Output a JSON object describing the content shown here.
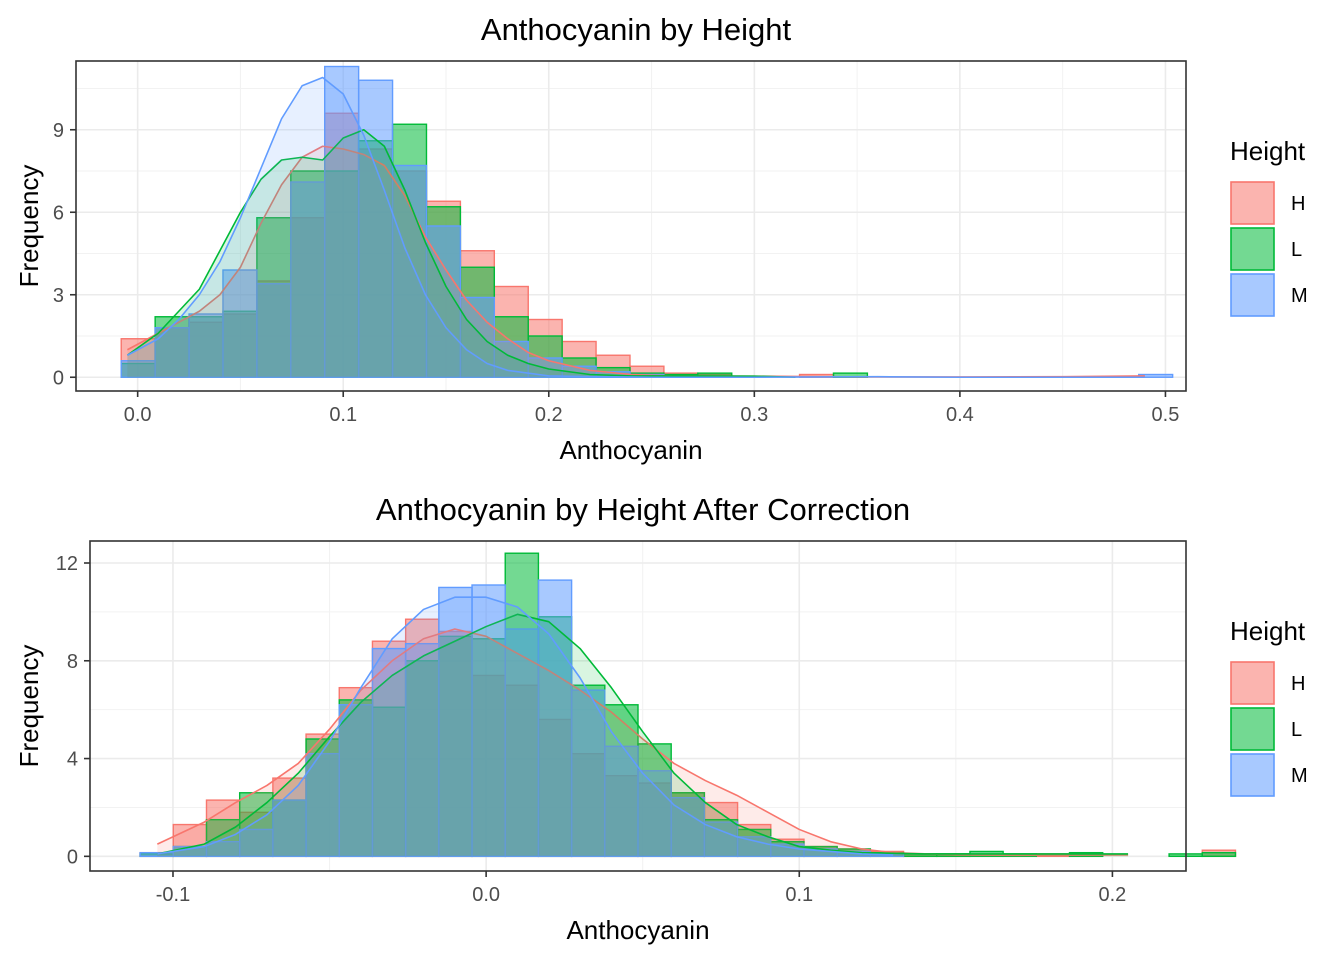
{
  "colors": {
    "H": "#F8766D",
    "L": "#00BA38",
    "M": "#619CFF"
  },
  "chart_data": [
    {
      "type": "histogram",
      "title": "Anthocyanin by Height",
      "xlabel": "Anthocyanin",
      "ylabel": "Frequency",
      "xlim": [
        -0.03,
        0.51
      ],
      "ylim": [
        -0.5,
        11.5
      ],
      "x_ticks": [
        0.0,
        0.1,
        0.2,
        0.3,
        0.4,
        0.5
      ],
      "x_tick_labels": [
        "0.0",
        "0.1",
        "0.2",
        "0.3",
        "0.4",
        "0.5"
      ],
      "y_ticks": [
        0,
        3,
        6,
        9
      ],
      "y_tick_labels": [
        "0",
        "3",
        "6",
        "9"
      ],
      "legend": {
        "title": "Height",
        "position": "right",
        "entries": [
          "H",
          "L",
          "M"
        ]
      },
      "bin_start": -0.008,
      "bin_width": 0.0165,
      "series": [
        {
          "name": "H",
          "values": [
            1.4,
            1.8,
            2.0,
            2.3,
            3.5,
            5.8,
            9.6,
            8.3,
            7.5,
            6.4,
            4.6,
            3.3,
            2.1,
            1.3,
            0.8,
            0.4,
            0.15,
            0.1,
            0,
            0,
            0.1,
            0,
            0,
            0,
            0,
            0,
            0,
            0,
            0,
            0,
            0,
            0,
            0,
            0,
            0,
            0,
            0,
            0,
            0,
            0.15
          ]
        },
        {
          "name": "L",
          "values": [
            0.5,
            2.2,
            2.2,
            2.4,
            5.8,
            7.5,
            7.5,
            8.6,
            9.2,
            6.2,
            4.0,
            2.2,
            1.5,
            0.7,
            0.35,
            0.15,
            0.1,
            0.15,
            0,
            0,
            0,
            0.15,
            0,
            0,
            0,
            0,
            0,
            0,
            0,
            0,
            0,
            0,
            0,
            0,
            0,
            0,
            0,
            0,
            0,
            0
          ]
        },
        {
          "name": "M",
          "values": [
            0.6,
            1.8,
            2.3,
            3.9,
            3.4,
            7.1,
            11.3,
            10.8,
            7.7,
            5.5,
            2.9,
            1.3,
            0.7,
            0.4,
            0.2,
            0.1,
            0,
            0,
            0,
            0,
            0,
            0,
            0,
            0,
            0,
            0,
            0,
            0,
            0,
            0,
            0.1,
            0,
            0,
            0,
            0,
            0,
            0,
            0,
            0,
            0
          ]
        }
      ],
      "density": [
        {
          "name": "H",
          "x": [
            -0.005,
            0.01,
            0.02,
            0.03,
            0.04,
            0.05,
            0.06,
            0.07,
            0.08,
            0.09,
            0.1,
            0.11,
            0.12,
            0.13,
            0.14,
            0.15,
            0.16,
            0.17,
            0.18,
            0.19,
            0.2,
            0.22,
            0.24,
            0.26,
            0.3,
            0.35,
            0.4,
            0.45,
            0.49
          ],
          "y": [
            1.0,
            1.6,
            2.0,
            2.4,
            3.0,
            4.0,
            5.6,
            7.0,
            8.0,
            8.4,
            8.3,
            8.1,
            7.7,
            6.6,
            5.1,
            3.9,
            2.8,
            2.0,
            1.4,
            0.9,
            0.6,
            0.25,
            0.1,
            0.05,
            0.04,
            0.01,
            0.01,
            0.02,
            0.05
          ]
        },
        {
          "name": "L",
          "x": [
            -0.005,
            0.01,
            0.02,
            0.03,
            0.04,
            0.05,
            0.06,
            0.07,
            0.08,
            0.09,
            0.1,
            0.11,
            0.12,
            0.13,
            0.14,
            0.15,
            0.16,
            0.17,
            0.18,
            0.19,
            0.2,
            0.22,
            0.24,
            0.26,
            0.3,
            0.32
          ],
          "y": [
            0.8,
            1.6,
            2.4,
            3.2,
            4.6,
            6.0,
            7.2,
            7.9,
            8.0,
            7.9,
            8.7,
            9.0,
            8.4,
            6.8,
            4.9,
            3.3,
            2.1,
            1.3,
            0.8,
            0.5,
            0.3,
            0.1,
            0.05,
            0.05,
            0.04,
            0.0
          ]
        },
        {
          "name": "M",
          "x": [
            -0.005,
            0.01,
            0.02,
            0.03,
            0.04,
            0.05,
            0.06,
            0.07,
            0.08,
            0.09,
            0.1,
            0.11,
            0.12,
            0.13,
            0.14,
            0.15,
            0.16,
            0.17,
            0.18,
            0.2,
            0.22,
            0.25,
            0.3,
            0.36,
            0.4,
            0.45,
            0.49
          ],
          "y": [
            0.8,
            1.4,
            2.1,
            3.0,
            4.2,
            5.8,
            7.6,
            9.4,
            10.6,
            10.9,
            10.3,
            8.8,
            6.8,
            4.7,
            3.0,
            1.8,
            1.0,
            0.5,
            0.25,
            0.05,
            0.02,
            0.0,
            0.0,
            0.02,
            0.0,
            0.0,
            0.0
          ]
        }
      ]
    },
    {
      "type": "histogram",
      "title": "Anthocyanin by Height After Correction",
      "xlabel": "Anthocyanin",
      "ylabel": "Frequency",
      "xlim": [
        -0.1265,
        0.2235
      ],
      "ylim": [
        -0.6,
        12.9
      ],
      "x_ticks": [
        -0.1,
        0.0,
        0.1,
        0.2
      ],
      "x_tick_labels": [
        "-0.1",
        "0.0",
        "0.1",
        "0.2"
      ],
      "y_ticks": [
        0,
        4,
        8,
        12
      ],
      "y_tick_labels": [
        "0",
        "4",
        "8",
        "12"
      ],
      "legend": {
        "title": "Height",
        "position": "right",
        "entries": [
          "H",
          "L",
          "M"
        ]
      },
      "bin_start": -0.1105,
      "bin_width": 0.0106,
      "series": [
        {
          "name": "H",
          "values": [
            0.15,
            1.3,
            2.3,
            1.8,
            3.2,
            5.0,
            6.9,
            8.8,
            9.7,
            9.2,
            7.4,
            7.0,
            5.6,
            4.2,
            3.3,
            3.0,
            2.6,
            2.2,
            1.3,
            0.7,
            0.4,
            0.3,
            0.2,
            0.1,
            0.1,
            0,
            0,
            0.1,
            0,
            0,
            0,
            0,
            0.25
          ]
        },
        {
          "name": "L",
          "values": [
            0.1,
            0.4,
            1.5,
            2.6,
            2.3,
            4.8,
            6.4,
            6.1,
            8.0,
            9.0,
            8.9,
            12.4,
            9.8,
            7.0,
            6.2,
            4.6,
            2.6,
            1.5,
            1.1,
            0.6,
            0.4,
            0.3,
            0.15,
            0.1,
            0.1,
            0.2,
            0.1,
            0,
            0.15,
            0,
            0,
            0.1,
            0.15
          ]
        },
        {
          "name": "M",
          "values": [
            0.15,
            0.4,
            0.6,
            1.1,
            2.3,
            4.2,
            6.2,
            8.5,
            8.7,
            11.0,
            11.1,
            9.3,
            11.3,
            6.8,
            4.5,
            3.5,
            2.4,
            1.4,
            0.8,
            0.5,
            0.3,
            0.2,
            0.1,
            0,
            0,
            0,
            0,
            0,
            0,
            0,
            0,
            0,
            0
          ]
        }
      ],
      "density": [
        {
          "name": "H",
          "x": [
            -0.105,
            -0.09,
            -0.08,
            -0.07,
            -0.06,
            -0.05,
            -0.04,
            -0.03,
            -0.02,
            -0.01,
            0.0,
            0.01,
            0.02,
            0.03,
            0.04,
            0.05,
            0.06,
            0.07,
            0.08,
            0.09,
            0.1,
            0.11,
            0.12,
            0.13,
            0.15,
            0.17,
            0.19,
            0.205
          ],
          "y": [
            0.5,
            1.4,
            2.2,
            2.9,
            3.8,
            5.2,
            6.8,
            8.0,
            8.9,
            9.3,
            9.0,
            8.3,
            7.6,
            6.8,
            5.9,
            4.8,
            3.8,
            3.1,
            2.5,
            1.8,
            1.1,
            0.6,
            0.3,
            0.15,
            0.06,
            0.04,
            0.05,
            0.06
          ]
        },
        {
          "name": "L",
          "x": [
            -0.105,
            -0.09,
            -0.08,
            -0.07,
            -0.06,
            -0.05,
            -0.04,
            -0.03,
            -0.02,
            -0.01,
            0.0,
            0.01,
            0.02,
            0.03,
            0.04,
            0.05,
            0.06,
            0.07,
            0.08,
            0.09,
            0.1,
            0.11,
            0.12,
            0.14,
            0.16,
            0.18,
            0.205
          ],
          "y": [
            0.1,
            0.5,
            1.2,
            2.2,
            3.4,
            4.9,
            6.3,
            7.4,
            8.2,
            8.8,
            9.4,
            9.9,
            9.6,
            8.5,
            6.9,
            5.1,
            3.4,
            2.2,
            1.3,
            0.8,
            0.4,
            0.25,
            0.15,
            0.1,
            0.1,
            0.1,
            0.1
          ]
        },
        {
          "name": "M",
          "x": [
            -0.105,
            -0.09,
            -0.08,
            -0.07,
            -0.06,
            -0.05,
            -0.04,
            -0.03,
            -0.02,
            -0.01,
            0.0,
            0.01,
            0.02,
            0.03,
            0.04,
            0.05,
            0.06,
            0.07,
            0.08,
            0.09,
            0.1,
            0.11,
            0.12,
            0.13
          ],
          "y": [
            0.1,
            0.4,
            0.9,
            1.7,
            2.9,
            4.7,
            6.9,
            8.9,
            10.1,
            10.6,
            10.6,
            10.2,
            9.1,
            7.3,
            5.1,
            3.4,
            2.1,
            1.3,
            0.8,
            0.5,
            0.3,
            0.2,
            0.1,
            0.05
          ]
        }
      ]
    }
  ]
}
